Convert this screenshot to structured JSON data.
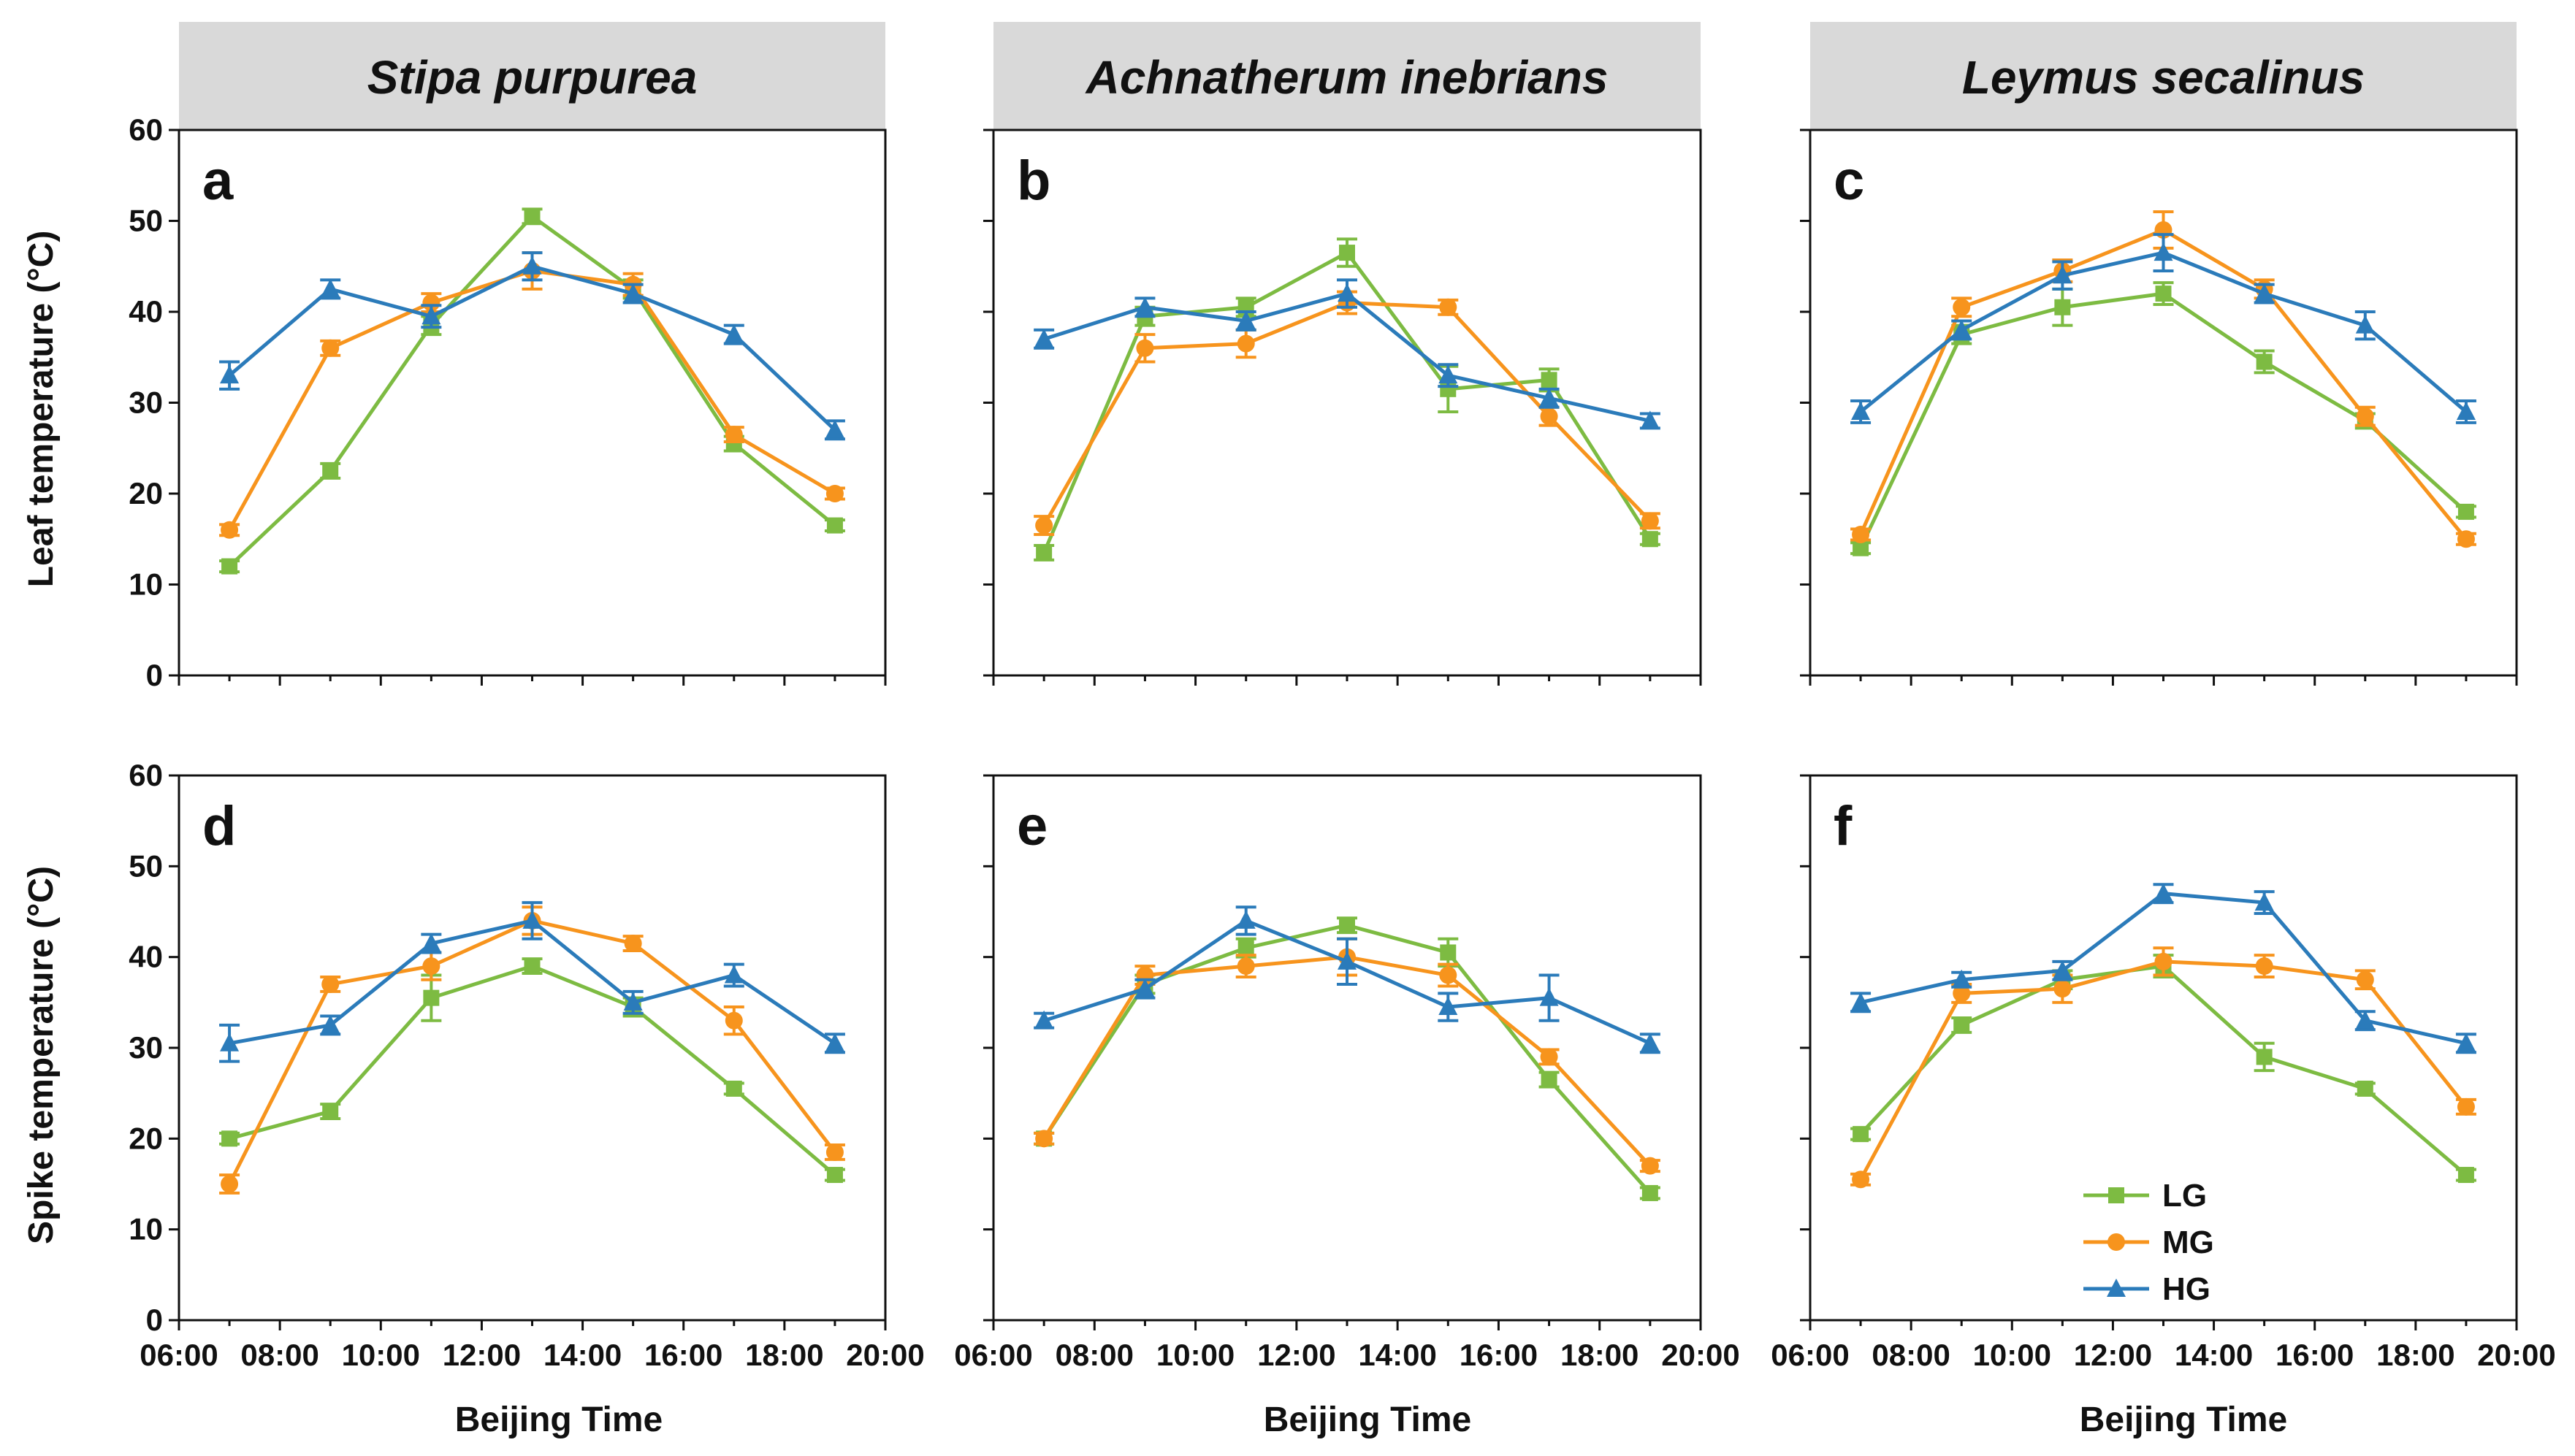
{
  "figure": {
    "columns": [
      {
        "species": "Stipa purpurea"
      },
      {
        "species": "Achnatherum inebrians"
      },
      {
        "species": "Leymus secalinus"
      }
    ],
    "row_ylabels": [
      "Leaf temperature (°C)",
      "Spike temperature (°C)"
    ],
    "xlabel": "Beijing Time"
  },
  "colors": {
    "LG": "#7dbb42",
    "MG": "#f7941d",
    "HG": "#2b7bba",
    "title_bg": "#d9d9d9"
  },
  "legend": {
    "placement": "lower-right of panel f",
    "entries": [
      "LG",
      "MG",
      "HG"
    ],
    "markers": [
      "square",
      "circle",
      "triangle"
    ]
  },
  "chart_data": [
    {
      "type": "line",
      "panel": "a",
      "row": "leaf",
      "species": "Stipa purpurea",
      "x": [
        7,
        9,
        11,
        13,
        15,
        17,
        19
      ],
      "xlim": [
        6,
        20
      ],
      "ylim": [
        0,
        60
      ],
      "x_ticks": [
        "06:00",
        "08:00",
        "10:00",
        "12:00",
        "14:00",
        "16:00",
        "18:00",
        "20:00"
      ],
      "y_ticks": [
        "0",
        "10",
        "20",
        "30",
        "40",
        "50",
        "60"
      ],
      "series": [
        {
          "name": "LG",
          "values": [
            12,
            22.5,
            38.5,
            50.5,
            42.5,
            25.5,
            16.5
          ],
          "err": [
            0.6,
            0.8,
            1.0,
            0.8,
            1.0,
            0.8,
            0.6
          ]
        },
        {
          "name": "MG",
          "values": [
            16,
            36,
            41,
            44.5,
            43,
            26.5,
            20
          ],
          "err": [
            0.6,
            0.8,
            1.0,
            2.0,
            1.2,
            0.8,
            0.6
          ]
        },
        {
          "name": "HG",
          "values": [
            33,
            42.5,
            39.5,
            45,
            42,
            37.5,
            27
          ],
          "err": [
            1.5,
            1.0,
            1.2,
            1.5,
            1.0,
            1.0,
            1.0
          ]
        }
      ]
    },
    {
      "type": "line",
      "panel": "b",
      "row": "leaf",
      "species": "Achnatherum inebrians",
      "x": [
        7,
        9,
        11,
        13,
        15,
        17,
        19
      ],
      "xlim": [
        6,
        20
      ],
      "ylim": [
        0,
        60
      ],
      "x_ticks": [
        "06:00",
        "08:00",
        "10:00",
        "12:00",
        "14:00",
        "16:00",
        "18:00",
        "20:00"
      ],
      "y_ticks": [
        "0",
        "10",
        "20",
        "30",
        "40",
        "50",
        "60"
      ],
      "series": [
        {
          "name": "LG",
          "values": [
            13.5,
            39.5,
            40.5,
            46.5,
            31.5,
            32.5,
            15
          ],
          "err": [
            0.8,
            1.0,
            1.0,
            1.5,
            2.5,
            1.2,
            0.6
          ]
        },
        {
          "name": "MG",
          "values": [
            16.5,
            36,
            36.5,
            41,
            40.5,
            28.5,
            17
          ],
          "err": [
            1.0,
            1.5,
            1.5,
            1.2,
            0.8,
            1.0,
            0.8
          ]
        },
        {
          "name": "HG",
          "values": [
            37,
            40.5,
            39,
            42,
            33,
            30.5,
            28
          ],
          "err": [
            1.0,
            1.0,
            1.0,
            1.5,
            1.2,
            1.0,
            0.8
          ]
        }
      ]
    },
    {
      "type": "line",
      "panel": "c",
      "row": "leaf",
      "species": "Leymus secalinus",
      "x": [
        7,
        9,
        11,
        13,
        15,
        17,
        19
      ],
      "xlim": [
        6,
        20
      ],
      "ylim": [
        0,
        60
      ],
      "x_ticks": [
        "06:00",
        "08:00",
        "10:00",
        "12:00",
        "14:00",
        "16:00",
        "18:00",
        "20:00"
      ],
      "y_ticks": [
        "0",
        "10",
        "20",
        "30",
        "40",
        "50",
        "60"
      ],
      "series": [
        {
          "name": "LG",
          "values": [
            14,
            37.5,
            40.5,
            42,
            34.5,
            28,
            18
          ],
          "err": [
            0.6,
            1.0,
            2.0,
            1.2,
            1.2,
            0.8,
            0.6
          ]
        },
        {
          "name": "MG",
          "values": [
            15.5,
            40.5,
            44.5,
            49,
            42.5,
            28.5,
            15
          ],
          "err": [
            0.6,
            1.0,
            1.2,
            2.0,
            1.0,
            1.0,
            0.6
          ]
        },
        {
          "name": "HG",
          "values": [
            29,
            38,
            44,
            46.5,
            42,
            38.5,
            29
          ],
          "err": [
            1.2,
            1.0,
            1.5,
            2.0,
            1.0,
            1.5,
            1.2
          ]
        }
      ]
    },
    {
      "type": "line",
      "panel": "d",
      "row": "spike",
      "species": "Stipa purpurea",
      "x": [
        7,
        9,
        11,
        13,
        15,
        17,
        19
      ],
      "xlim": [
        6,
        20
      ],
      "ylim": [
        0,
        60
      ],
      "x_ticks": [
        "06:00",
        "08:00",
        "10:00",
        "12:00",
        "14:00",
        "16:00",
        "18:00",
        "20:00"
      ],
      "y_ticks": [
        "0",
        "10",
        "20",
        "30",
        "40",
        "50",
        "60"
      ],
      "series": [
        {
          "name": "LG",
          "values": [
            20,
            23,
            35.5,
            39,
            34.5,
            25.5,
            16
          ],
          "err": [
            0.6,
            0.8,
            2.5,
            0.8,
            1.0,
            0.6,
            0.6
          ]
        },
        {
          "name": "MG",
          "values": [
            15,
            37,
            39,
            44,
            41.5,
            33,
            18.5
          ],
          "err": [
            1.0,
            0.8,
            1.5,
            1.5,
            0.8,
            1.5,
            0.8
          ]
        },
        {
          "name": "HG",
          "values": [
            30.5,
            32.5,
            41.5,
            44,
            35,
            38,
            30.5
          ],
          "err": [
            2.0,
            1.0,
            1.0,
            2.0,
            1.2,
            1.2,
            1.0
          ]
        }
      ]
    },
    {
      "type": "line",
      "panel": "e",
      "row": "spike",
      "species": "Achnatherum inebrians",
      "x": [
        7,
        9,
        11,
        13,
        15,
        17,
        19
      ],
      "xlim": [
        6,
        20
      ],
      "ylim": [
        0,
        60
      ],
      "x_ticks": [
        "06:00",
        "08:00",
        "10:00",
        "12:00",
        "14:00",
        "16:00",
        "18:00",
        "20:00"
      ],
      "y_ticks": [
        "0",
        "10",
        "20",
        "30",
        "40",
        "50",
        "60"
      ],
      "series": [
        {
          "name": "LG",
          "values": [
            20,
            37,
            41,
            43.5,
            40.5,
            26.5,
            14
          ],
          "err": [
            0.6,
            1.0,
            1.0,
            0.8,
            1.5,
            0.8,
            0.6
          ]
        },
        {
          "name": "MG",
          "values": [
            20,
            38,
            39,
            40,
            38,
            29,
            17
          ],
          "err": [
            0.6,
            1.0,
            1.2,
            2.0,
            1.2,
            0.8,
            0.6
          ]
        },
        {
          "name": "HG",
          "values": [
            33,
            36.5,
            44,
            39.5,
            34.5,
            35.5,
            30.5
          ],
          "err": [
            0.8,
            1.0,
            1.5,
            2.5,
            1.5,
            2.5,
            1.0
          ]
        }
      ]
    },
    {
      "type": "line",
      "panel": "f",
      "row": "spike",
      "species": "Leymus secalinus",
      "x": [
        7,
        9,
        11,
        13,
        15,
        17,
        19
      ],
      "xlim": [
        6,
        20
      ],
      "ylim": [
        0,
        60
      ],
      "x_ticks": [
        "06:00",
        "08:00",
        "10:00",
        "12:00",
        "14:00",
        "16:00",
        "18:00",
        "20:00"
      ],
      "y_ticks": [
        "0",
        "10",
        "20",
        "30",
        "40",
        "50",
        "60"
      ],
      "series": [
        {
          "name": "LG",
          "values": [
            20.5,
            32.5,
            37.5,
            39,
            29,
            25.5,
            16
          ],
          "err": [
            0.6,
            0.8,
            1.0,
            1.2,
            1.5,
            0.6,
            0.6
          ]
        },
        {
          "name": "MG",
          "values": [
            15.5,
            36,
            36.5,
            39.5,
            39,
            37.5,
            23.5
          ],
          "err": [
            0.6,
            1.0,
            1.5,
            1.5,
            1.2,
            1.0,
            0.8
          ]
        },
        {
          "name": "HG",
          "values": [
            35,
            37.5,
            38.5,
            47,
            46,
            33,
            30.5
          ],
          "err": [
            1.0,
            0.8,
            1.0,
            1.0,
            1.2,
            1.0,
            1.0
          ]
        }
      ]
    }
  ]
}
